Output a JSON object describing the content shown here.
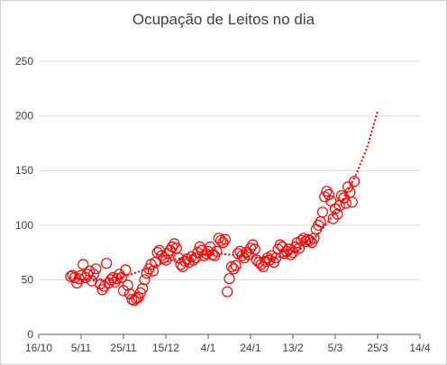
{
  "chart_data": {
    "type": "scatter",
    "title": "Ocupação de Leitos no dia",
    "xlabel": "",
    "ylabel": "",
    "ylim": [
      0,
      250
    ],
    "yticks": [
      0,
      50,
      100,
      150,
      200,
      250
    ],
    "xlim": [
      "2020-10-16",
      "2021-04-14"
    ],
    "xticks": [
      "16/10",
      "5/11",
      "25/11",
      "15/12",
      "4/1",
      "24/1",
      "13/2",
      "5/3",
      "25/3",
      "14/4"
    ],
    "grid": "horizontal",
    "colors": {
      "marker": "#ff0000",
      "trend": "#ff0000",
      "grid": "#d9d9d9",
      "axis": "#595959"
    },
    "series": [
      {
        "kind": "observed",
        "marker": "open-circle",
        "points": [
          [
            "2020-10-31",
            53
          ],
          [
            "2020-11-01",
            54
          ],
          [
            "2020-11-02",
            52
          ],
          [
            "2020-11-03",
            47
          ],
          [
            "2020-11-04",
            51
          ],
          [
            "2020-11-05",
            54
          ],
          [
            "2020-11-06",
            64
          ],
          [
            "2020-11-07",
            52
          ],
          [
            "2020-11-08",
            55
          ],
          [
            "2020-11-09",
            58
          ],
          [
            "2020-11-10",
            49
          ],
          [
            "2020-11-11",
            55
          ],
          [
            "2020-11-12",
            60
          ],
          [
            "2020-11-14",
            46
          ],
          [
            "2020-11-15",
            41
          ],
          [
            "2020-11-16",
            44
          ],
          [
            "2020-11-17",
            65
          ],
          [
            "2020-11-18",
            47
          ],
          [
            "2020-11-19",
            50
          ],
          [
            "2020-11-20",
            52
          ],
          [
            "2020-11-21",
            48
          ],
          [
            "2020-11-22",
            51
          ],
          [
            "2020-11-23",
            55
          ],
          [
            "2020-11-24",
            52
          ],
          [
            "2020-11-25",
            40
          ],
          [
            "2020-11-26",
            59
          ],
          [
            "2020-11-27",
            45
          ],
          [
            "2020-11-28",
            37
          ],
          [
            "2020-11-29",
            32
          ],
          [
            "2020-11-30",
            31
          ],
          [
            "2020-12-01",
            33
          ],
          [
            "2020-12-02",
            34
          ],
          [
            "2020-12-03",
            38
          ],
          [
            "2020-12-04",
            42
          ],
          [
            "2020-12-05",
            50
          ],
          [
            "2020-12-06",
            56
          ],
          [
            "2020-12-07",
            60
          ],
          [
            "2020-12-08",
            64
          ],
          [
            "2020-12-09",
            58
          ],
          [
            "2020-12-10",
            66
          ],
          [
            "2020-12-11",
            75
          ],
          [
            "2020-12-12",
            77
          ],
          [
            "2020-12-13",
            72
          ],
          [
            "2020-12-14",
            70
          ],
          [
            "2020-12-15",
            68
          ],
          [
            "2020-12-16",
            74
          ],
          [
            "2020-12-17",
            77
          ],
          [
            "2020-12-18",
            80
          ],
          [
            "2020-12-19",
            83
          ],
          [
            "2020-12-20",
            79
          ],
          [
            "2020-12-21",
            70
          ],
          [
            "2020-12-22",
            64
          ],
          [
            "2020-12-23",
            62
          ],
          [
            "2020-12-24",
            67
          ],
          [
            "2020-12-25",
            69
          ],
          [
            "2020-12-26",
            66
          ],
          [
            "2020-12-27",
            71
          ],
          [
            "2020-12-28",
            68
          ],
          [
            "2020-12-29",
            70
          ],
          [
            "2020-12-30",
            75
          ],
          [
            "2020-12-31",
            80
          ],
          [
            "2021-01-01",
            77
          ],
          [
            "2021-01-02",
            72
          ],
          [
            "2021-01-03",
            74
          ],
          [
            "2021-01-04",
            76
          ],
          [
            "2021-01-05",
            80
          ],
          [
            "2021-01-06",
            73
          ],
          [
            "2021-01-07",
            72
          ],
          [
            "2021-01-08",
            76
          ],
          [
            "2021-01-09",
            88
          ],
          [
            "2021-01-10",
            86
          ],
          [
            "2021-01-11",
            84
          ],
          [
            "2021-01-12",
            87
          ],
          [
            "2021-01-13",
            39
          ],
          [
            "2021-01-14",
            51
          ],
          [
            "2021-01-15",
            62
          ],
          [
            "2021-01-16",
            60
          ],
          [
            "2021-01-17",
            63
          ],
          [
            "2021-01-18",
            74
          ],
          [
            "2021-01-19",
            76
          ],
          [
            "2021-01-20",
            72
          ],
          [
            "2021-01-21",
            70
          ],
          [
            "2021-01-22",
            75
          ],
          [
            "2021-01-23",
            73
          ],
          [
            "2021-01-24",
            79
          ],
          [
            "2021-01-25",
            82
          ],
          [
            "2021-01-26",
            78
          ],
          [
            "2021-01-27",
            68
          ],
          [
            "2021-01-28",
            66
          ],
          [
            "2021-01-29",
            64
          ],
          [
            "2021-01-30",
            62
          ],
          [
            "2021-01-31",
            67
          ],
          [
            "2021-02-01",
            70
          ],
          [
            "2021-02-02",
            68
          ],
          [
            "2021-02-03",
            72
          ],
          [
            "2021-02-04",
            66
          ],
          [
            "2021-02-05",
            70
          ],
          [
            "2021-02-06",
            78
          ],
          [
            "2021-02-07",
            82
          ],
          [
            "2021-02-08",
            80
          ],
          [
            "2021-02-09",
            74
          ],
          [
            "2021-02-10",
            76
          ],
          [
            "2021-02-11",
            78
          ],
          [
            "2021-02-12",
            73
          ],
          [
            "2021-02-13",
            75
          ],
          [
            "2021-02-14",
            80
          ],
          [
            "2021-02-15",
            84
          ],
          [
            "2021-02-16",
            79
          ],
          [
            "2021-02-17",
            86
          ],
          [
            "2021-02-18",
            88
          ],
          [
            "2021-02-19",
            85
          ],
          [
            "2021-02-20",
            87
          ],
          [
            "2021-02-21",
            86
          ],
          [
            "2021-02-22",
            84
          ],
          [
            "2021-02-23",
            88
          ],
          [
            "2021-02-24",
            96
          ],
          [
            "2021-02-25",
            100
          ],
          [
            "2021-02-26",
            103
          ],
          [
            "2021-02-27",
            112
          ],
          [
            "2021-02-28",
            126
          ],
          [
            "2021-03-01",
            131
          ],
          [
            "2021-03-02",
            128
          ],
          [
            "2021-03-03",
            122
          ],
          [
            "2021-03-04",
            106
          ],
          [
            "2021-03-05",
            115
          ],
          [
            "2021-03-06",
            110
          ],
          [
            "2021-03-07",
            118
          ],
          [
            "2021-03-08",
            127
          ],
          [
            "2021-03-09",
            125
          ],
          [
            "2021-03-10",
            120
          ],
          [
            "2021-03-11",
            135
          ],
          [
            "2021-03-12",
            130
          ],
          [
            "2021-03-13",
            121
          ],
          [
            "2021-03-14",
            140
          ]
        ]
      },
      {
        "kind": "trend",
        "marker": "dotted-line",
        "points": [
          [
            "2020-10-31",
            52
          ],
          [
            "2020-11-10",
            49
          ],
          [
            "2020-11-20",
            50
          ],
          [
            "2020-11-30",
            56
          ],
          [
            "2020-12-10",
            63
          ],
          [
            "2020-12-20",
            69
          ],
          [
            "2020-12-30",
            73
          ],
          [
            "2021-01-09",
            74
          ],
          [
            "2021-01-19",
            72
          ],
          [
            "2021-01-29",
            70
          ],
          [
            "2021-02-08",
            71
          ],
          [
            "2021-02-13",
            74
          ],
          [
            "2021-02-18",
            80
          ],
          [
            "2021-02-23",
            88
          ],
          [
            "2021-02-28",
            99
          ],
          [
            "2021-03-05",
            112
          ],
          [
            "2021-03-10",
            128
          ],
          [
            "2021-03-15",
            147
          ],
          [
            "2021-03-20",
            171
          ],
          [
            "2021-03-25",
            204
          ]
        ]
      }
    ]
  }
}
